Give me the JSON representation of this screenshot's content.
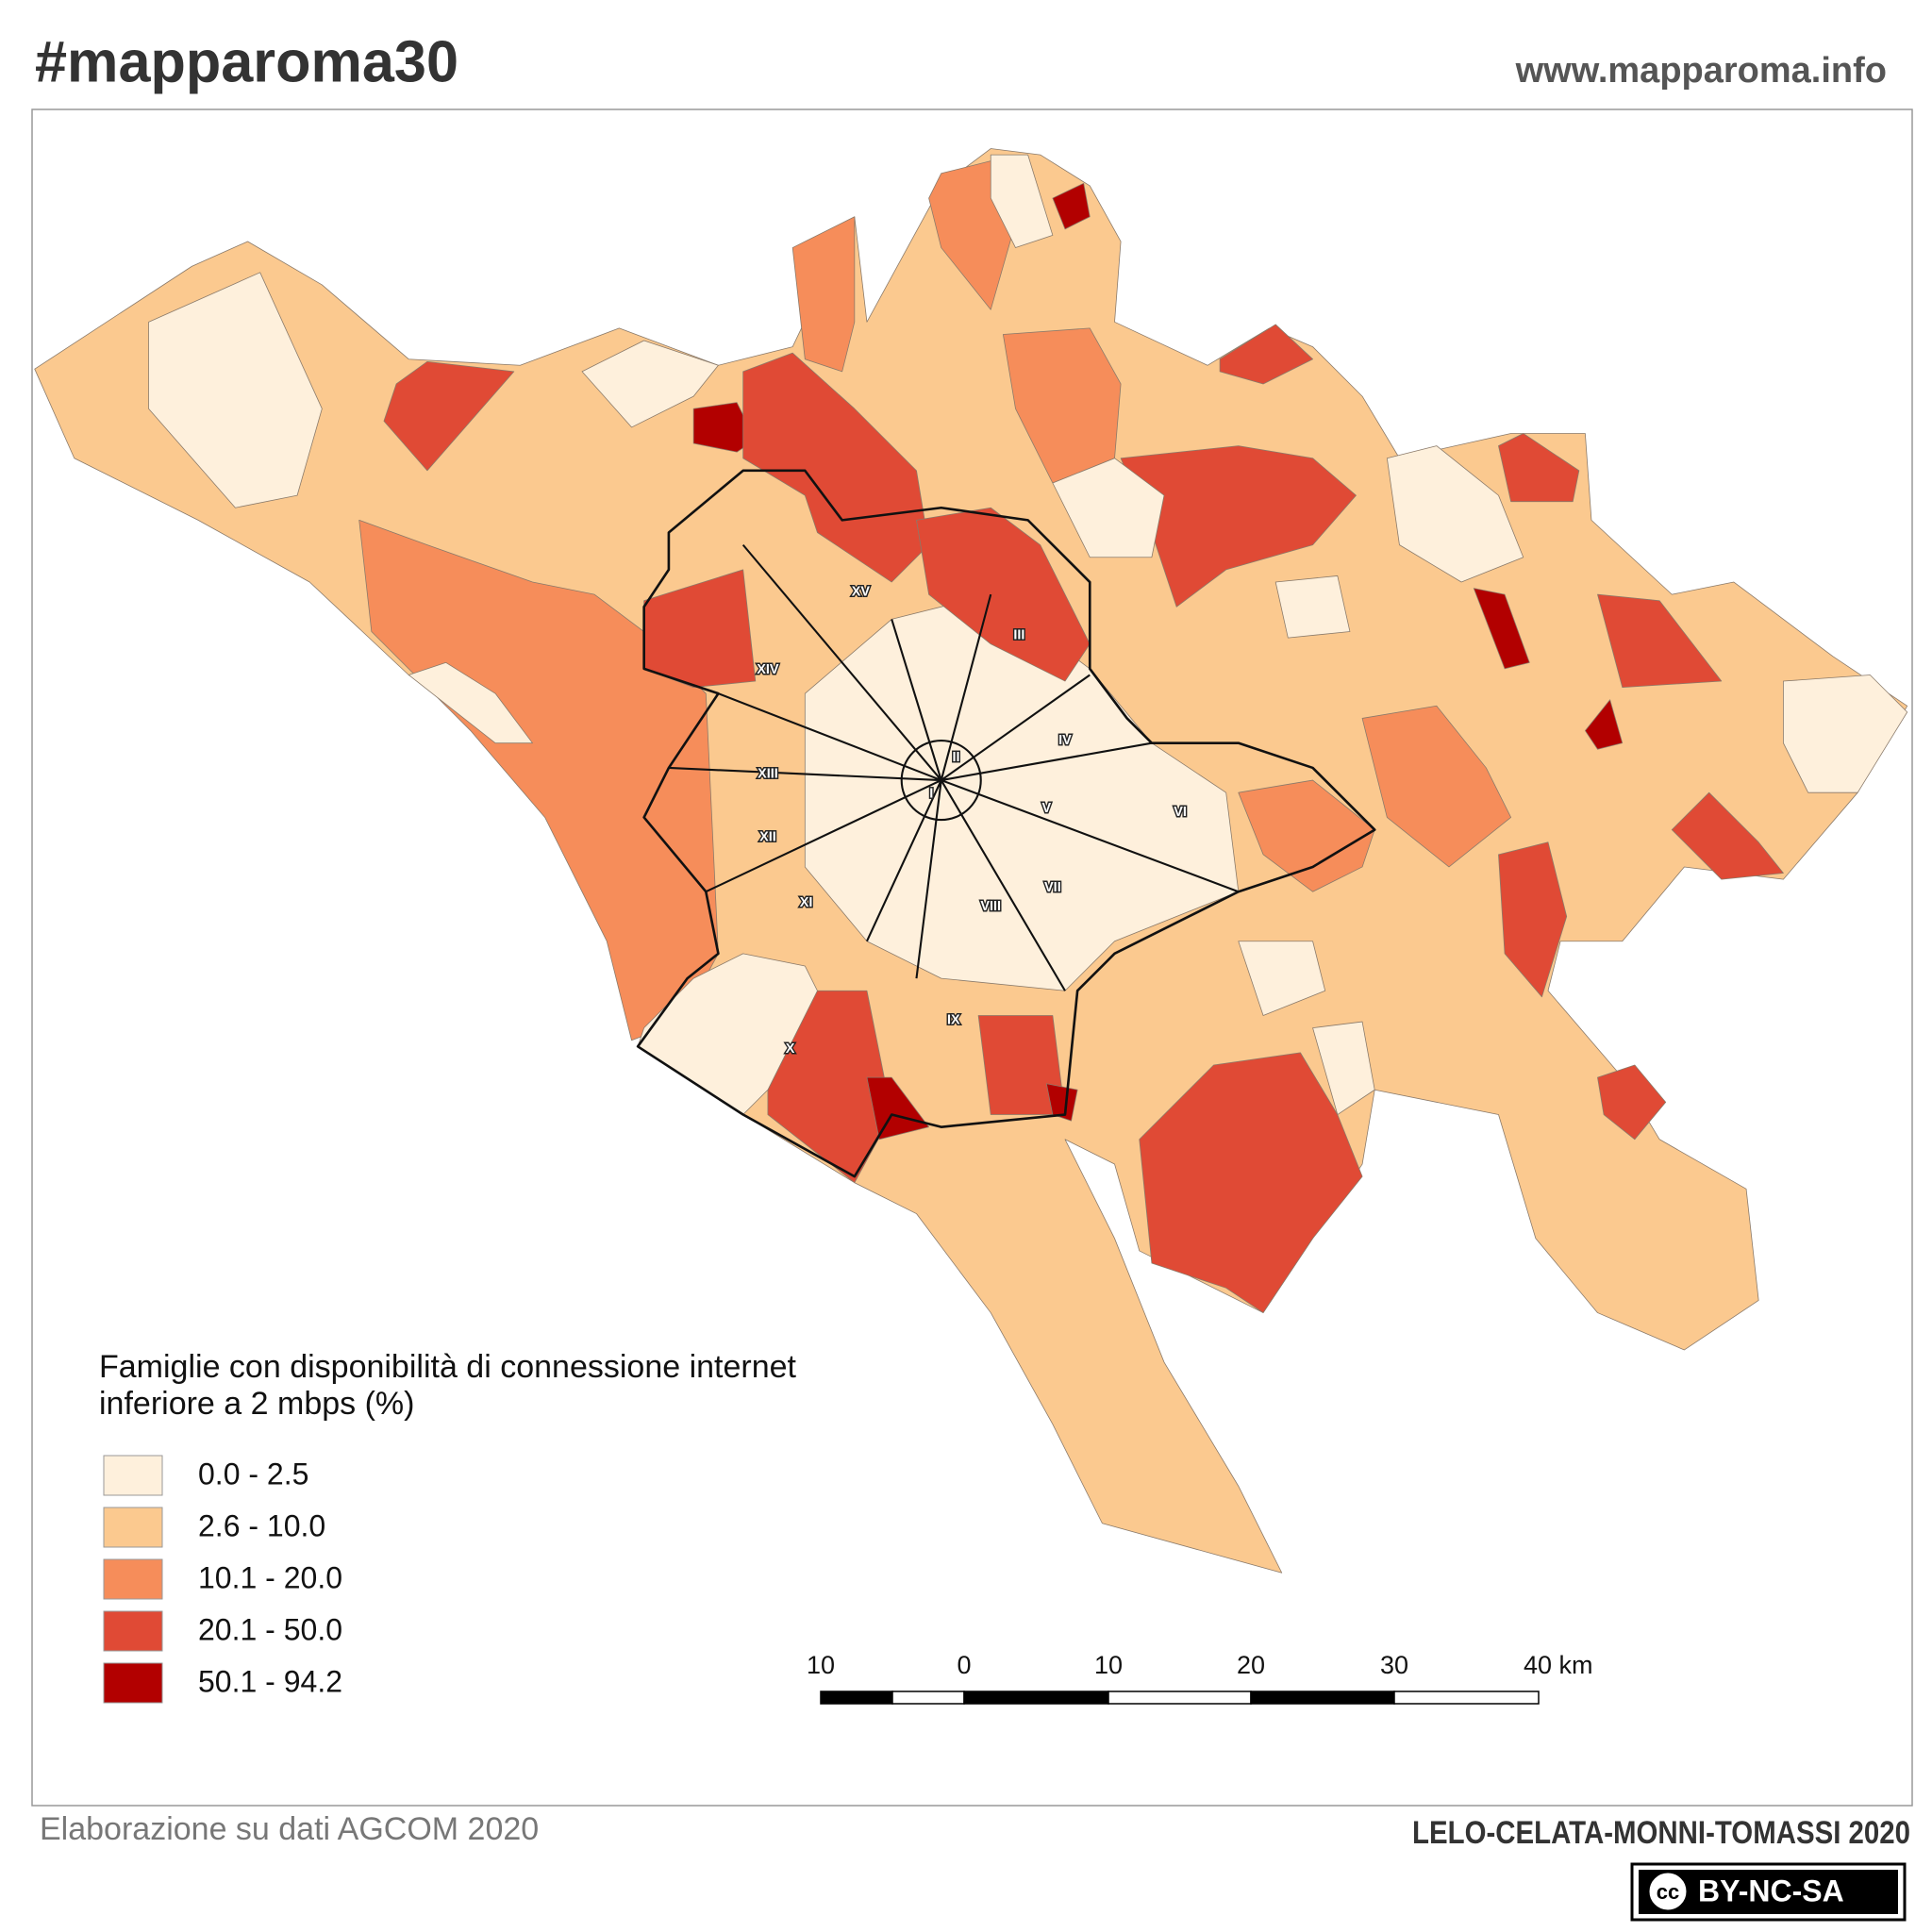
{
  "header": {
    "title": "#mapparoma30",
    "url": "www.mapparoma.info"
  },
  "legend": {
    "title": [
      "Famiglie con disponibilità di connessione internet",
      "inferiore a 2 mbps (%)"
    ],
    "items": [
      {
        "label": "0.0 - 2.5",
        "color": "#fef0dc"
      },
      {
        "label": "2.6 - 10.0",
        "color": "#fbc98f"
      },
      {
        "label": "10.1 - 20.0",
        "color": "#f68d5a"
      },
      {
        "label": "20.1 - 50.0",
        "color": "#e04a35"
      },
      {
        "label": "50.1 - 94.2",
        "color": "#b20000"
      }
    ]
  },
  "scale_bar": {
    "labels": [
      "10",
      "0",
      "10",
      "20",
      "30",
      "40 km"
    ]
  },
  "map": {
    "municipi": [
      "I",
      "II",
      "III",
      "IV",
      "V",
      "VI",
      "VII",
      "VIII",
      "IX",
      "X",
      "XI",
      "XII",
      "XIII",
      "XIV",
      "XV"
    ]
  },
  "footer": {
    "source": "Elaborazione su dati AGCOM 2020",
    "authors": "LELO-CELATA-MONNI-TOMASSI 2020",
    "license": {
      "badge": "cc",
      "text": "BY-NC-SA"
    }
  }
}
